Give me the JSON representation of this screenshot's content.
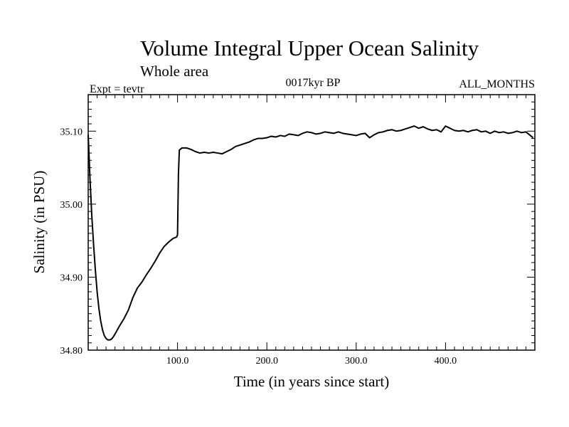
{
  "header": {
    "title": "Volume Integral Upper Ocean Salinity",
    "subtitle": "Whole area",
    "left_label": "Expt = tevtr",
    "center_label": "0017kyr BP",
    "right_label": "ALL_MONTHS"
  },
  "chart_data": {
    "type": "line",
    "xlabel": "Time (in years since start)",
    "ylabel": "Salinity (in PSU)",
    "xlim": [
      0,
      500
    ],
    "ylim": [
      34.8,
      35.15
    ],
    "x_ticks": [
      100,
      200,
      300,
      400
    ],
    "x_tick_labels": [
      "100.0",
      "200.0",
      "300.0",
      "400.0"
    ],
    "y_ticks": [
      34.8,
      34.9,
      35.0,
      35.1
    ],
    "y_tick_labels": [
      "34.80",
      "34.90",
      "35.00",
      "35.10"
    ],
    "grid": false,
    "series": [
      {
        "color": "#000000",
        "x": [
          0,
          2,
          4,
          6,
          8,
          10,
          12,
          14,
          16,
          18,
          20,
          22,
          24,
          26,
          28,
          30,
          35,
          40,
          45,
          50,
          55,
          60,
          65,
          70,
          75,
          80,
          85,
          90,
          95,
          99,
          100,
          101,
          102,
          105,
          110,
          115,
          120,
          125,
          130,
          135,
          140,
          145,
          150,
          155,
          160,
          165,
          170,
          175,
          180,
          185,
          190,
          195,
          200,
          205,
          210,
          215,
          220,
          225,
          230,
          235,
          240,
          245,
          250,
          255,
          260,
          265,
          270,
          275,
          280,
          285,
          290,
          295,
          300,
          305,
          310,
          315,
          320,
          325,
          330,
          335,
          340,
          345,
          350,
          355,
          360,
          365,
          370,
          375,
          380,
          385,
          390,
          395,
          400,
          405,
          410,
          415,
          420,
          425,
          430,
          435,
          440,
          445,
          450,
          455,
          460,
          465,
          470,
          475,
          480,
          485,
          490,
          495,
          498
        ],
        "values": [
          35.095,
          35.035,
          34.985,
          34.945,
          34.91,
          34.88,
          34.857,
          34.84,
          34.828,
          34.82,
          34.816,
          34.814,
          34.814,
          34.815,
          34.818,
          34.822,
          34.833,
          34.843,
          34.855,
          34.872,
          34.885,
          34.893,
          34.903,
          34.912,
          34.922,
          34.933,
          34.942,
          34.948,
          34.953,
          34.955,
          34.958,
          35.04,
          35.074,
          35.077,
          35.077,
          35.075,
          35.072,
          35.07,
          35.071,
          35.07,
          35.071,
          35.07,
          35.069,
          35.072,
          35.075,
          35.079,
          35.081,
          35.083,
          35.085,
          35.088,
          35.09,
          35.09,
          35.091,
          35.093,
          35.092,
          35.094,
          35.093,
          35.096,
          35.095,
          35.094,
          35.097,
          35.099,
          35.098,
          35.096,
          35.097,
          35.099,
          35.098,
          35.097,
          35.099,
          35.097,
          35.096,
          35.095,
          35.094,
          35.096,
          35.097,
          35.091,
          35.095,
          35.098,
          35.099,
          35.101,
          35.102,
          35.1,
          35.101,
          35.103,
          35.105,
          35.107,
          35.104,
          35.106,
          35.103,
          35.101,
          35.102,
          35.099,
          35.107,
          35.104,
          35.101,
          35.1,
          35.101,
          35.099,
          35.101,
          35.102,
          35.099,
          35.1,
          35.097,
          35.1,
          35.098,
          35.099,
          35.097,
          35.098,
          35.1,
          35.098,
          35.099,
          35.094,
          35.091
        ]
      }
    ]
  }
}
